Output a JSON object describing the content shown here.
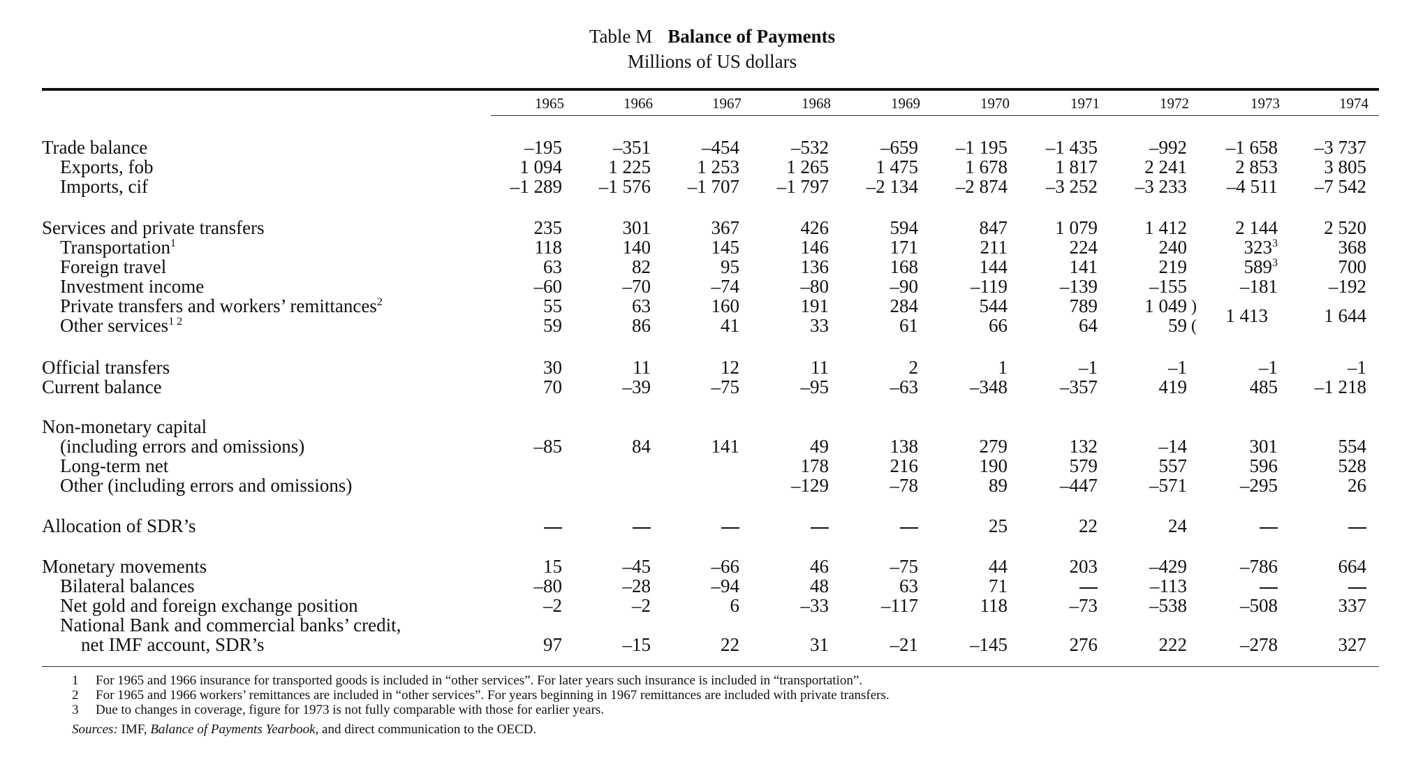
{
  "table": {
    "number": "Table M",
    "name": "Balance of Payments",
    "unit": "Millions of US dollars",
    "years": [
      "1965",
      "1966",
      "1967",
      "1968",
      "1969",
      "1970",
      "1971",
      "1972",
      "1973",
      "1974"
    ],
    "rows": [
      {
        "label": "Trade balance",
        "indent": 0,
        "values": [
          "–195",
          "–351",
          "–454",
          "–532",
          "–659",
          "–1 195",
          "–1 435",
          "–992",
          "–1 658",
          "–3 737"
        ]
      },
      {
        "label": "Exports, fob",
        "indent": 1,
        "values": [
          "1 094",
          "1 225",
          "1 253",
          "1 265",
          "1 475",
          "1 678",
          "1 817",
          "2 241",
          "2 853",
          "3 805"
        ]
      },
      {
        "label": "Imports, cif",
        "indent": 1,
        "values": [
          "–1 289",
          "–1 576",
          "–1 707",
          "–1 797",
          "–2 134",
          "–2 874",
          "–3 252",
          "–3 233",
          "–4 511",
          "–7 542"
        ]
      },
      {
        "label": "Services and private transfers",
        "indent": 0,
        "values": [
          "235",
          "301",
          "367",
          "426",
          "594",
          "847",
          "1 079",
          "1 412",
          "2 144",
          "2 520"
        ]
      },
      {
        "label": "Transportation",
        "label_sup": "1",
        "indent": 1,
        "values": [
          "118",
          "140",
          "145",
          "146",
          "171",
          "211",
          "224",
          "240",
          "323",
          "368"
        ],
        "value_sups": {
          "8": "3"
        }
      },
      {
        "label": "Foreign travel",
        "indent": 1,
        "values": [
          "63",
          "82",
          "95",
          "136",
          "168",
          "144",
          "141",
          "219",
          "589",
          "700"
        ],
        "value_sups": {
          "8": "3"
        }
      },
      {
        "label": "Investment income",
        "indent": 1,
        "values": [
          "–60",
          "–70",
          "–74",
          "–80",
          "–90",
          "–119",
          "–139",
          "–155",
          "–181",
          "–192"
        ]
      },
      {
        "label": "Private transfers and workers’ remittances",
        "label_sup": "2",
        "indent": 1,
        "values": [
          "55",
          "63",
          "160",
          "191",
          "284",
          "544",
          "789",
          "1 049",
          "",
          ""
        ]
      },
      {
        "label": "Other services",
        "label_sup": "1 2",
        "indent": 1,
        "values": [
          "59",
          "86",
          "41",
          "33",
          "61",
          "66",
          "64",
          "59",
          "",
          ""
        ]
      },
      {
        "label": "Official transfers",
        "indent": 0,
        "values": [
          "30",
          "11",
          "12",
          "11",
          "2",
          "1",
          "–1",
          "–1",
          "–1",
          "–1"
        ]
      },
      {
        "label": "Current balance",
        "indent": 0,
        "values": [
          "70",
          "–39",
          "–75",
          "–95",
          "–63",
          "–348",
          "–357",
          "419",
          "485",
          "–1 218"
        ]
      },
      {
        "label": "Non-monetary capital",
        "indent": 0,
        "values": [
          "",
          "",
          "",
          "",
          "",
          "",
          "",
          "",
          "",
          ""
        ]
      },
      {
        "label": "(including errors and omissions)",
        "indent": 1,
        "values": [
          "–85",
          "84",
          "141",
          "49",
          "138",
          "279",
          "132",
          "–14",
          "301",
          "554"
        ]
      },
      {
        "label": "Long-term net",
        "indent": 1,
        "values": [
          "",
          "",
          "",
          "178",
          "216",
          "190",
          "579",
          "557",
          "596",
          "528"
        ]
      },
      {
        "label": "Other (including errors and omissions)",
        "indent": 1,
        "values": [
          "",
          "",
          "",
          "–129",
          "–78",
          "89",
          "–447",
          "–571",
          "–295",
          "26"
        ]
      },
      {
        "label": "Allocation of SDR’s",
        "indent": 0,
        "values": [
          "—",
          "—",
          "—",
          "—",
          "—",
          "25",
          "22",
          "24",
          "—",
          "—"
        ]
      },
      {
        "label": "Monetary movements",
        "indent": 0,
        "values": [
          "15",
          "–45",
          "–66",
          "46",
          "–75",
          "44",
          "203",
          "–429",
          "–786",
          "664"
        ]
      },
      {
        "label": "Bilateral balances",
        "indent": 1,
        "values": [
          "–80",
          "–28",
          "–94",
          "48",
          "63",
          "71",
          "—",
          "–113",
          "—",
          "—"
        ]
      },
      {
        "label": "Net gold and foreign exchange position",
        "indent": 1,
        "values": [
          "–2",
          "–2",
          "6",
          "–33",
          "–117",
          "118",
          "–73",
          "–538",
          "–508",
          "337"
        ]
      },
      {
        "label": "National Bank and commercial banks’ credit,",
        "indent": 1,
        "values": [
          "",
          "",
          "",
          "",
          "",
          "",
          "",
          "",
          "",
          ""
        ]
      },
      {
        "label": "net IMF account, SDR’s",
        "indent": 2,
        "values": [
          "97",
          "–15",
          "22",
          "31",
          "–21",
          "–145",
          "276",
          "222",
          "–278",
          "327"
        ]
      }
    ],
    "combined": {
      "value_1973": "1 413",
      "value_1974": "1 644"
    }
  },
  "footnotes": [
    {
      "num": "1",
      "text": "For 1965 and 1966 insurance for transported goods is included in “other services”.  For later years such insurance is included in “transportation”."
    },
    {
      "num": "2",
      "text": "For 1965 and 1966 workers’ remittances are included in “other services”.  For years beginning in 1967 remittances are included with private transfers."
    },
    {
      "num": "3",
      "text": "Due to changes in coverage, figure for 1973 is not fully comparable with those for earlier years."
    }
  ],
  "sources": {
    "label": "Sources:",
    "pre": "IMF,",
    "book": "Balance of Payments Yearbook",
    "post": ", and direct communication to the OECD."
  }
}
